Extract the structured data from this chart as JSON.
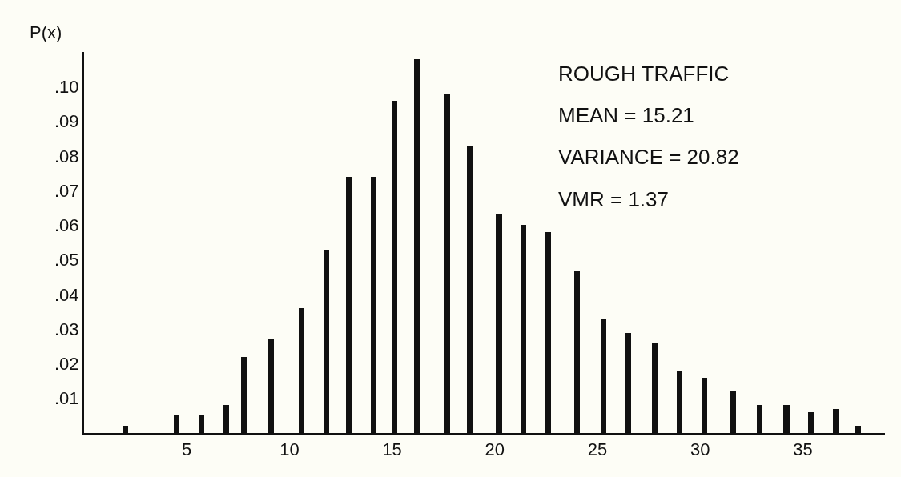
{
  "chart_data": {
    "type": "bar",
    "ylabel": "P(x)",
    "annotations": [
      "ROUGH TRAFFIC",
      "MEAN = 15.21",
      "VARIANCE = 20.82",
      "VMR = 1.37"
    ],
    "x": [
      2.0,
      4.5,
      5.7,
      6.9,
      7.8,
      9.1,
      10.6,
      11.8,
      12.9,
      14.1,
      15.1,
      16.2,
      17.7,
      18.8,
      20.2,
      21.4,
      22.6,
      24.0,
      25.3,
      26.5,
      27.8,
      29.0,
      30.2,
      31.6,
      32.9,
      34.2,
      35.4,
      36.6,
      37.7
    ],
    "values": [
      0.002,
      0.005,
      0.005,
      0.008,
      0.022,
      0.027,
      0.036,
      0.053,
      0.074,
      0.074,
      0.096,
      0.108,
      0.098,
      0.083,
      0.063,
      0.06,
      0.058,
      0.047,
      0.033,
      0.029,
      0.026,
      0.018,
      0.016,
      0.012,
      0.008,
      0.008,
      0.006,
      0.007,
      0.002
    ],
    "color": "#111111",
    "xlim": [
      0,
      39
    ],
    "xticks": [
      5,
      10,
      15,
      20,
      25,
      30,
      35
    ],
    "ylim": [
      0,
      0.11
    ],
    "yticks": [
      {
        "value": 0.01,
        "label": ".01"
      },
      {
        "value": 0.02,
        "label": ".02"
      },
      {
        "value": 0.03,
        "label": ".03"
      },
      {
        "value": 0.04,
        "label": ".04"
      },
      {
        "value": 0.05,
        "label": ".05"
      },
      {
        "value": 0.06,
        "label": ".06"
      },
      {
        "value": 0.07,
        "label": ".07"
      },
      {
        "value": 0.08,
        "label": ".08"
      },
      {
        "value": 0.09,
        "label": ".09"
      },
      {
        "value": 0.1,
        "label": ".10"
      }
    ],
    "grid": false
  }
}
